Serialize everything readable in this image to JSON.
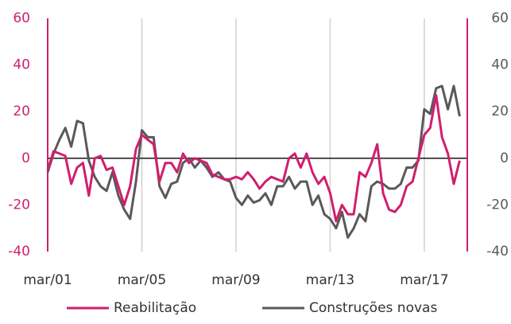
{
  "chart_data": {
    "type": "line",
    "categories": [
      "mar/01",
      null,
      null,
      null,
      null,
      null,
      null,
      null,
      null,
      null,
      null,
      null,
      null,
      null,
      null,
      null,
      "mar/05",
      null,
      null,
      null,
      null,
      null,
      null,
      null,
      null,
      null,
      null,
      null,
      null,
      null,
      null,
      null,
      "mar/09",
      null,
      null,
      null,
      null,
      null,
      null,
      null,
      null,
      null,
      null,
      null,
      null,
      null,
      null,
      null,
      "mar/13",
      null,
      null,
      null,
      null,
      null,
      null,
      null,
      null,
      null,
      null,
      null,
      null,
      null,
      null,
      null,
      "mar/17",
      null,
      null,
      null,
      null,
      null,
      null
    ],
    "series": [
      {
        "name": "Reabilitação",
        "color": "#d01f6e",
        "values": [
          -5,
          3,
          2,
          1,
          -11,
          -4,
          -2,
          -16,
          0,
          1,
          -5,
          -4,
          -12,
          -20,
          -12,
          4,
          10,
          8,
          6,
          -10,
          -2,
          -2,
          -6,
          2,
          -2,
          0,
          -1,
          -2,
          -7,
          -8,
          -9,
          -9,
          -8,
          -9,
          -6,
          -9,
          -13,
          -10,
          -8,
          -9,
          -10,
          0,
          2,
          -4,
          2,
          -6,
          -11,
          -8,
          -15,
          -27,
          -20,
          -24,
          -24,
          -6,
          -8,
          -2,
          6,
          -15,
          -22,
          -23,
          -20,
          -12,
          -10,
          0,
          10,
          13,
          27,
          9,
          2,
          -11,
          -1
        ]
      },
      {
        "name": "Construções novas",
        "color": "#595959",
        "values": [
          -6,
          2,
          8,
          13,
          5,
          16,
          15,
          -1,
          -8,
          -12,
          -14,
          -6,
          -16,
          -22,
          -26,
          -10,
          12,
          9,
          9,
          -12,
          -17,
          -11,
          -10,
          -2,
          0,
          -4,
          -1,
          -4,
          -8,
          -6,
          -9,
          -10,
          -17,
          -20,
          -16,
          -19,
          -18,
          -15,
          -20,
          -12,
          -12,
          -8,
          -13,
          -10,
          -10,
          -20,
          -16,
          -24,
          -26,
          -30,
          -23,
          -34,
          -30,
          -24,
          -27,
          -12,
          -10,
          -11,
          -13,
          -13,
          -11,
          -4,
          -4,
          -1,
          21,
          19,
          30,
          31,
          21,
          31,
          18
        ]
      }
    ],
    "ylim": [
      -40,
      60
    ],
    "yticks": [
      -40,
      -20,
      0,
      20,
      40,
      60
    ],
    "y2lim": [
      -40,
      60
    ],
    "y2ticks": [
      -40,
      -20,
      0,
      20,
      40,
      60
    ],
    "axis_color": "#d01f6e",
    "y_label_color": "#d01f6e",
    "y2_label_color": "#595959",
    "vgrid": true,
    "legend": "bottom"
  }
}
